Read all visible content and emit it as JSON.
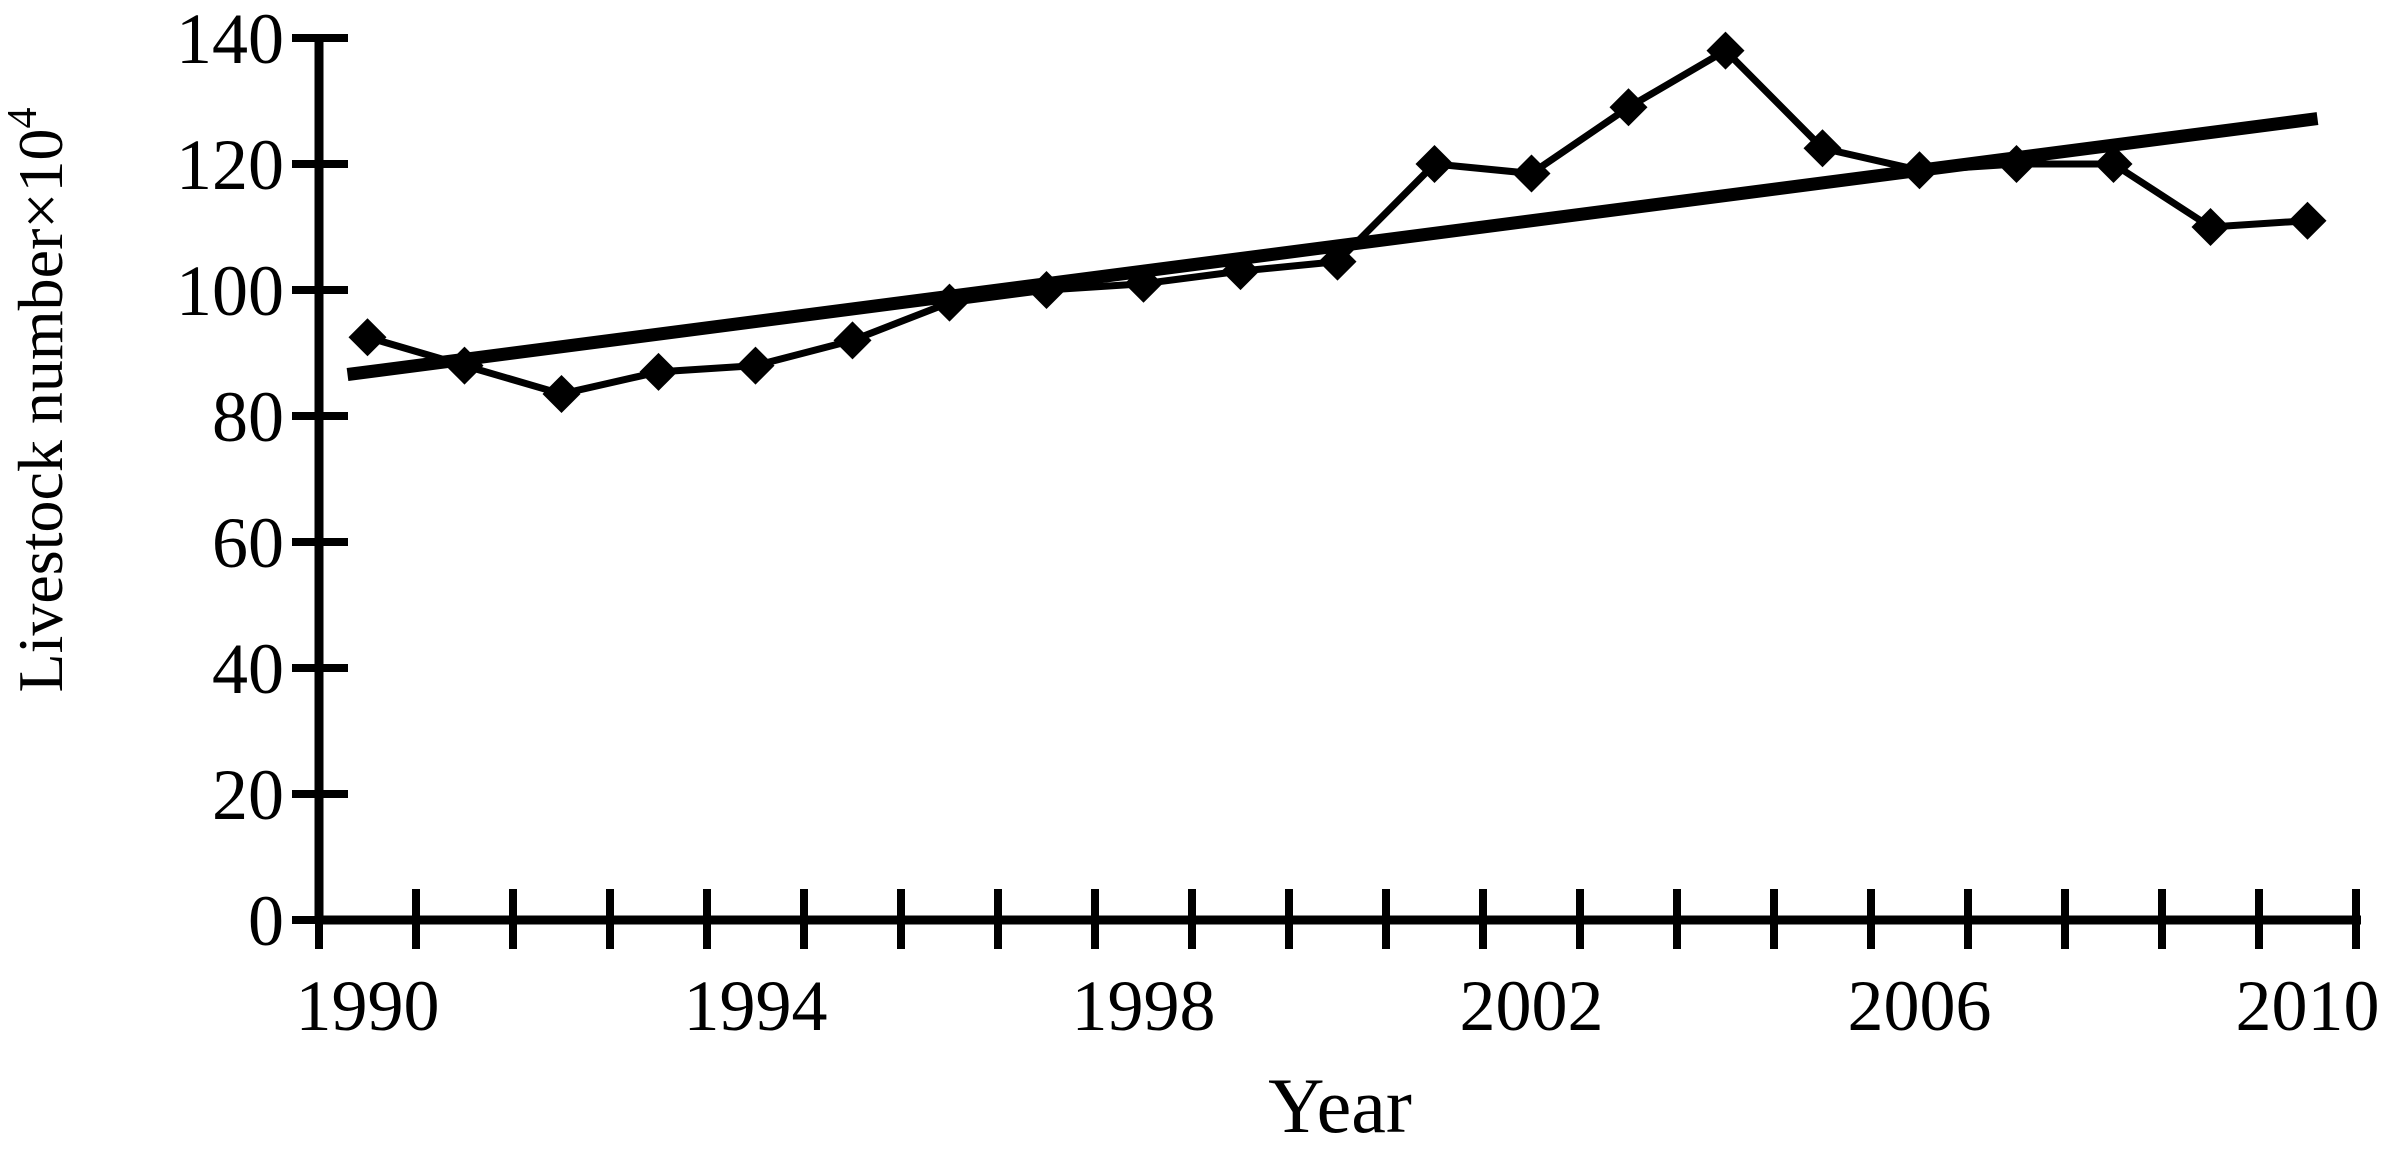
{
  "chart_data": {
    "type": "line",
    "title": "",
    "xlabel": "Year",
    "ylabel": "Livestock number×10⁴",
    "ylabel_base": "Livestock number×10",
    "ylabel_sup": "4",
    "x": [
      1990,
      1991,
      1992,
      1993,
      1994,
      1995,
      1996,
      1997,
      1998,
      1999,
      2000,
      2001,
      2002,
      2003,
      2004,
      2005,
      2006,
      2007,
      2008,
      2009,
      2010
    ],
    "series": [
      {
        "name": "Livestock number",
        "marker": "diamond",
        "line_style": "solid",
        "values": [
          92.5,
          88,
          83.5,
          87,
          88,
          92,
          98,
          100,
          101,
          103,
          104.5,
          120,
          118.5,
          129,
          138,
          122.5,
          119,
          120,
          120,
          110,
          111
        ]
      }
    ],
    "trend_line": {
      "shape": "straight",
      "start_year": 1990,
      "start_value": 87,
      "end_year": 2010,
      "end_value": 127
    },
    "ylim": [
      0,
      140
    ],
    "yticks": [
      0,
      20,
      40,
      60,
      80,
      100,
      120,
      140
    ],
    "xtick_labels": [
      "1990",
      "1994",
      "1998",
      "2002",
      "2006",
      "2010"
    ],
    "xtick_label_years": [
      1990,
      1994,
      1998,
      2002,
      2006,
      2010
    ],
    "x_minor_tick_every_year": true,
    "grid": false,
    "legend": "none",
    "colors": {
      "series": "#000000",
      "trend": "#000000",
      "axis": "#000000",
      "text": "#000000",
      "background": "#ffffff"
    }
  }
}
